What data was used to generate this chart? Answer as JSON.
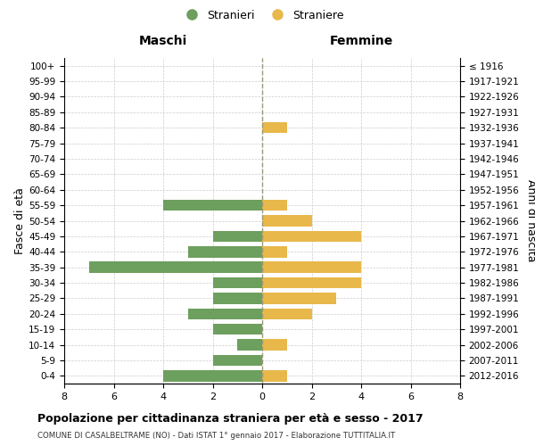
{
  "age_groups": [
    "0-4",
    "5-9",
    "10-14",
    "15-19",
    "20-24",
    "25-29",
    "30-34",
    "35-39",
    "40-44",
    "45-49",
    "50-54",
    "55-59",
    "60-64",
    "65-69",
    "70-74",
    "75-79",
    "80-84",
    "85-89",
    "90-94",
    "95-99",
    "100+"
  ],
  "birth_years": [
    "2012-2016",
    "2007-2011",
    "2002-2006",
    "1997-2001",
    "1992-1996",
    "1987-1991",
    "1982-1986",
    "1977-1981",
    "1972-1976",
    "1967-1971",
    "1962-1966",
    "1957-1961",
    "1952-1956",
    "1947-1951",
    "1942-1946",
    "1937-1941",
    "1932-1936",
    "1927-1931",
    "1922-1926",
    "1917-1921",
    "≤ 1916"
  ],
  "maschi": [
    4,
    2,
    1,
    2,
    3,
    2,
    2,
    7,
    3,
    2,
    0,
    4,
    0,
    0,
    0,
    0,
    0,
    0,
    0,
    0,
    0
  ],
  "femmine": [
    1,
    0,
    1,
    0,
    2,
    3,
    4,
    4,
    1,
    4,
    2,
    1,
    0,
    0,
    0,
    0,
    1,
    0,
    0,
    0,
    0
  ],
  "maschi_color": "#6d9f5e",
  "femmine_color": "#e8b84b",
  "title": "Popolazione per cittadinanza straniera per età e sesso - 2017",
  "subtitle": "COMUNE DI CASALBELTRAME (NO) - Dati ISTAT 1° gennaio 2017 - Elaborazione TUTTITALIA.IT",
  "xlabel_left": "Maschi",
  "xlabel_right": "Femmine",
  "ylabel_left": "Fasce di età",
  "ylabel_right": "Anni di nascita",
  "legend_maschi": "Stranieri",
  "legend_femmine": "Straniere",
  "xlim": 8,
  "background_color": "#ffffff",
  "grid_color": "#cccccc"
}
